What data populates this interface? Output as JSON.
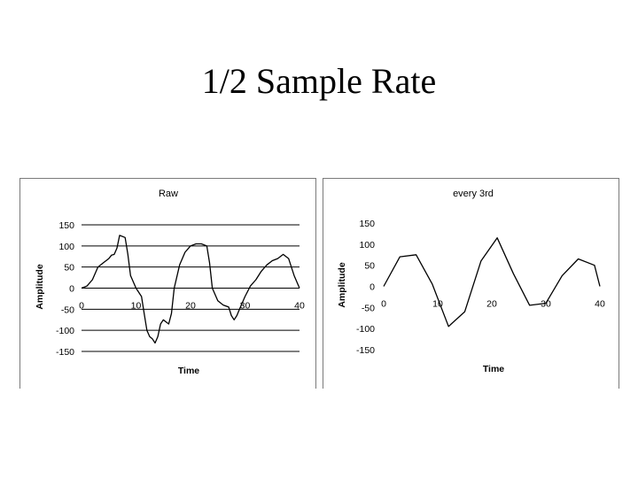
{
  "slide": {
    "title": "1/2 Sample Rate"
  },
  "chart_data": [
    {
      "type": "line",
      "title": "Raw",
      "xlabel": "Time",
      "ylabel": "Amplitude",
      "xlim": [
        0,
        40
      ],
      "ylim": [
        -150,
        150
      ],
      "xticks": [
        "0",
        "10",
        "20",
        "30",
        "40"
      ],
      "yticks": [
        "150",
        "100",
        "50",
        "0",
        "-50",
        "-100",
        "-150"
      ],
      "grid": "horizontal",
      "series": [
        {
          "x": [
            0,
            1,
            2,
            3,
            4,
            5,
            5.5,
            6,
            6.5,
            7,
            8,
            8.5,
            9,
            10,
            11,
            11.5,
            12,
            12.5,
            13,
            13.5,
            14,
            14.5,
            15,
            15.5,
            16,
            16.5,
            17,
            18,
            19,
            20,
            21,
            22,
            23,
            23.5,
            24,
            25,
            26,
            27,
            27.5,
            28,
            28.5,
            29,
            30,
            31,
            32,
            33,
            34,
            35,
            36,
            37,
            38,
            39,
            40
          ],
          "y": [
            0,
            5,
            20,
            50,
            60,
            70,
            78,
            80,
            95,
            125,
            120,
            80,
            30,
            0,
            -20,
            -60,
            -100,
            -115,
            -120,
            -130,
            -115,
            -85,
            -75,
            -80,
            -85,
            -60,
            0,
            55,
            85,
            100,
            105,
            105,
            100,
            60,
            0,
            -30,
            -40,
            -45,
            -65,
            -75,
            -65,
            -50,
            -20,
            5,
            20,
            40,
            55,
            65,
            70,
            80,
            70,
            30,
            0
          ]
        }
      ]
    },
    {
      "type": "line",
      "title": "every 3rd",
      "xlabel": "Time",
      "ylabel": "Amplitude",
      "xlim": [
        0,
        40
      ],
      "ylim": [
        -150,
        150
      ],
      "xticks": [
        "0",
        "10",
        "20",
        "30",
        "40"
      ],
      "yticks": [
        "150",
        "100",
        "50",
        "0",
        "-50",
        "-100",
        "-150"
      ],
      "grid": "none",
      "series": [
        {
          "x": [
            0,
            3,
            6,
            9,
            12,
            15,
            18,
            21,
            24,
            27,
            30,
            33,
            36,
            39,
            40
          ],
          "y": [
            0,
            70,
            75,
            5,
            -95,
            -60,
            60,
            115,
            30,
            -45,
            -40,
            25,
            65,
            50,
            0
          ]
        }
      ]
    }
  ]
}
